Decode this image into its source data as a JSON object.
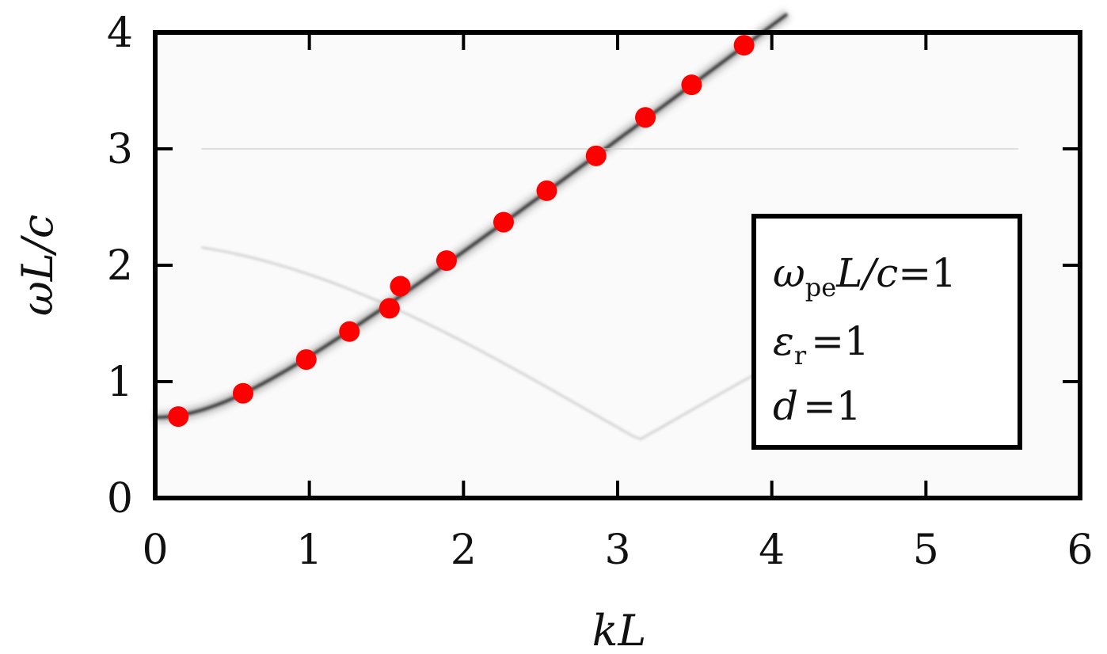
{
  "chart_data": {
    "type": "scatter",
    "xlabel": "kL",
    "ylabel": "ωL/c",
    "xlim": [
      0,
      6
    ],
    "ylim": [
      0,
      4
    ],
    "x_ticks": [
      "0",
      "1",
      "2",
      "3",
      "4",
      "5",
      "6"
    ],
    "y_ticks": [
      "0",
      "1",
      "2",
      "3",
      "4"
    ],
    "grid": false,
    "background": "grayscale intensity map of dispersion relation",
    "series": [
      {
        "marker": "circle",
        "color": "#ff0000",
        "points": [
          {
            "x": 0.15,
            "y": 0.7
          },
          {
            "x": 0.57,
            "y": 0.9
          },
          {
            "x": 0.98,
            "y": 1.19
          },
          {
            "x": 1.26,
            "y": 1.43
          },
          {
            "x": 1.52,
            "y": 1.63
          },
          {
            "x": 1.59,
            "y": 1.82
          },
          {
            "x": 1.89,
            "y": 2.04
          },
          {
            "x": 2.26,
            "y": 2.37
          },
          {
            "x": 2.54,
            "y": 2.64
          },
          {
            "x": 2.86,
            "y": 2.94
          },
          {
            "x": 3.18,
            "y": 3.27
          },
          {
            "x": 3.48,
            "y": 3.55
          },
          {
            "x": 3.82,
            "y": 3.89
          }
        ]
      }
    ],
    "legend": {
      "placement": "right",
      "lines": [
        {
          "main": "ω",
          "sub": "pe",
          "rest": "L/c",
          "op": "=",
          "value": "1"
        },
        {
          "main": "ε",
          "sub": "r",
          "rest": "",
          "op": "=",
          "value": "1"
        },
        {
          "main": "d",
          "sub": "",
          "rest": "",
          "op": "=",
          "value": "1"
        }
      ]
    }
  }
}
